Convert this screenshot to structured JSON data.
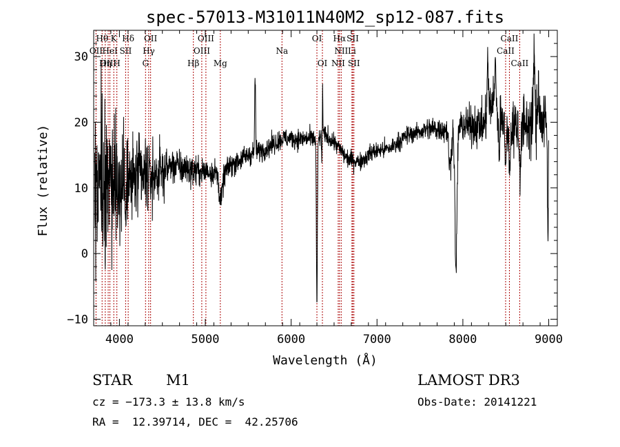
{
  "chart_data": {
    "type": "line",
    "title": "spec-57013-M31011N40M2_sp12-087.fits",
    "xlabel": "Wavelength (Å)",
    "ylabel": "Flux (relative)",
    "xlim": [
      3700,
      9100
    ],
    "ylim": [
      -11,
      34
    ],
    "xticks": [
      4000,
      5000,
      6000,
      7000,
      8000,
      9000
    ],
    "yticks": [
      -10,
      0,
      10,
      20,
      30
    ],
    "x_tick_labels": [
      "4000",
      "5000",
      "6000",
      "7000",
      "8000",
      "9000"
    ],
    "y_tick_labels": [
      "−10",
      "0",
      "10",
      "20",
      "30"
    ],
    "grid": false,
    "line_color": "#000000",
    "marker_color": "#aa0000",
    "continuum": [
      [
        3700,
        9
      ],
      [
        3800,
        10
      ],
      [
        3900,
        11
      ],
      [
        4000,
        11
      ],
      [
        4100,
        10.5
      ],
      [
        4200,
        11.5
      ],
      [
        4350,
        11.5
      ],
      [
        4500,
        12.5
      ],
      [
        4600,
        13.5
      ],
      [
        4750,
        13
      ],
      [
        4900,
        12.5
      ],
      [
        5000,
        12.5
      ],
      [
        5100,
        12.5
      ],
      [
        5200,
        12
      ],
      [
        5300,
        13.5
      ],
      [
        5500,
        15
      ],
      [
        5700,
        16
      ],
      [
        5900,
        17.5
      ],
      [
        6100,
        17.5
      ],
      [
        6300,
        17.5
      ],
      [
        6400,
        18
      ],
      [
        6500,
        17
      ],
      [
        6650,
        14.5
      ],
      [
        6800,
        14
      ],
      [
        6950,
        15.5
      ],
      [
        7150,
        16
      ],
      [
        7350,
        18
      ],
      [
        7600,
        19
      ],
      [
        7800,
        19
      ],
      [
        8000,
        19.5
      ],
      [
        8250,
        19.5
      ],
      [
        8350,
        23.5
      ],
      [
        8450,
        21.5
      ],
      [
        8550,
        19.5
      ],
      [
        8700,
        19.5
      ],
      [
        8850,
        20
      ],
      [
        9000,
        20
      ]
    ],
    "noise": [
      [
        3700,
        10
      ],
      [
        4000,
        6
      ],
      [
        4300,
        4
      ],
      [
        4600,
        2
      ],
      [
        5000,
        1.5
      ],
      [
        5500,
        1.2
      ],
      [
        6500,
        1
      ],
      [
        7500,
        1
      ],
      [
        8300,
        2.5
      ],
      [
        8600,
        3
      ],
      [
        9000,
        4
      ]
    ],
    "absorption": [
      [
        6300,
        25,
        6
      ],
      [
        6360,
        6,
        5
      ],
      [
        7920,
        22,
        12
      ],
      [
        7850,
        6,
        15
      ],
      [
        4010,
        6,
        8
      ],
      [
        5180,
        4,
        20
      ],
      [
        8545,
        6,
        10
      ],
      [
        8665,
        6,
        10
      ],
      [
        8500,
        8,
        8
      ],
      [
        8420,
        6,
        10
      ],
      [
        8990,
        20,
        5
      ]
    ],
    "emission": [
      [
        5580,
        12,
        5
      ],
      [
        6365,
        10,
        4
      ],
      [
        8830,
        13,
        6
      ],
      [
        8290,
        8,
        8
      ],
      [
        8380,
        7,
        6
      ],
      [
        8880,
        6,
        8
      ],
      [
        3790,
        8,
        8
      ]
    ],
    "lines": [
      {
        "label": "Hθ",
        "wavelength": 3798,
        "row": 0
      },
      {
        "label": "K",
        "wavelength": 3934,
        "row": 0
      },
      {
        "label": "Hδ",
        "wavelength": 4102,
        "row": 0
      },
      {
        "label": "OII",
        "wavelength": 4363,
        "row": 0
      },
      {
        "label": "OIII",
        "wavelength": 5007,
        "row": 0
      },
      {
        "label": "OI",
        "wavelength": 6300,
        "row": 0
      },
      {
        "label": "Hα",
        "wavelength": 6563,
        "row": 0
      },
      {
        "label": "SII",
        "wavelength": 6717,
        "row": 0
      },
      {
        "label": "CaII",
        "wavelength": 8542,
        "row": 0
      },
      {
        "label": "OII",
        "wavelength": 3727,
        "row": 1
      },
      {
        "label": "HeI",
        "wavelength": 3889,
        "row": 1
      },
      {
        "label": "SII",
        "wavelength": 4072,
        "row": 1
      },
      {
        "label": "Hγ",
        "wavelength": 4341,
        "row": 1
      },
      {
        "label": "OIII",
        "wavelength": 4959,
        "row": 1
      },
      {
        "label": "Na",
        "wavelength": 5893,
        "row": 1
      },
      {
        "label": "NII",
        "wavelength": 6583,
        "row": 1
      },
      {
        "label": "Li",
        "wavelength": 6708,
        "row": 1
      },
      {
        "label": "CaII",
        "wavelength": 8498,
        "row": 1
      },
      {
        "label": "OIII",
        "wavelength": 3869,
        "row": 2
      },
      {
        "label": "Hη",
        "wavelength": 3835,
        "row": 2
      },
      {
        "label": "H",
        "wavelength": 3970,
        "row": 2
      },
      {
        "label": "G",
        "wavelength": 4304,
        "row": 2
      },
      {
        "label": "Hβ",
        "wavelength": 4861,
        "row": 2
      },
      {
        "label": "Mg",
        "wavelength": 5175,
        "row": 2
      },
      {
        "label": "OI",
        "wavelength": 6364,
        "row": 2
      },
      {
        "label": "NII",
        "wavelength": 6548,
        "row": 2
      },
      {
        "label": "SII",
        "wavelength": 6731,
        "row": 2
      },
      {
        "label": "CaII",
        "wavelength": 8662,
        "row": 2
      }
    ]
  },
  "info": {
    "object_type": "STAR",
    "subclass": "M1",
    "cz": "cz = −173.3 ± 13.8 km/s",
    "coords": "RA =  12.39714, DEC =  42.25706",
    "survey": "LAMOST DR3",
    "obs_date": "Obs-Date: 20141221"
  }
}
